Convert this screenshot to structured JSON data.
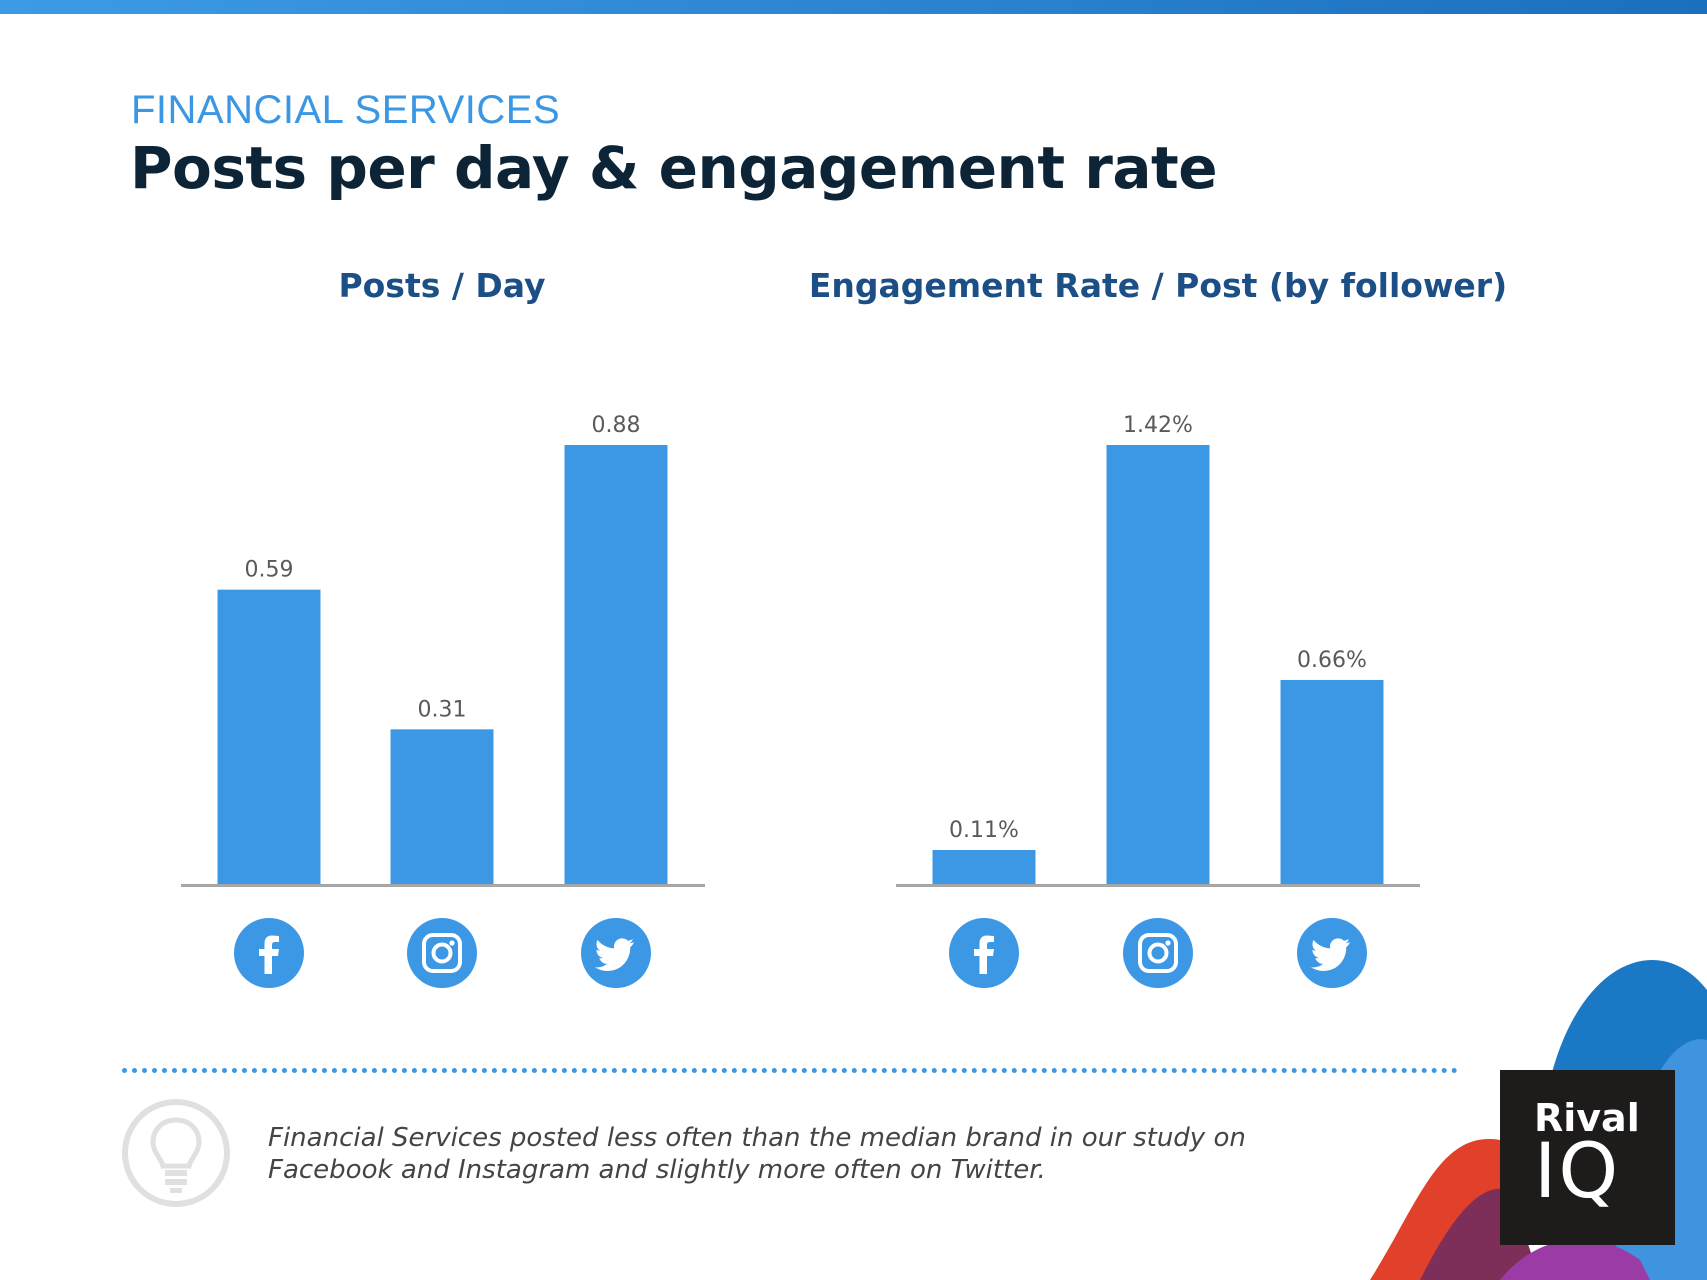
{
  "header": {
    "kicker": "FINANCIAL SERVICES",
    "title": "Posts per day & engagement rate"
  },
  "colors": {
    "bar": "#3c98e5",
    "title": "#0d2437",
    "chart_title": "#1c4f86",
    "kicker": "#3b97e3"
  },
  "chart_data": [
    {
      "type": "bar",
      "title": "Posts / Day",
      "categories": [
        "Facebook",
        "Instagram",
        "Twitter"
      ],
      "category_icons": [
        "facebook-icon",
        "instagram-icon",
        "twitter-icon"
      ],
      "values": [
        0.59,
        0.31,
        0.88
      ],
      "labels": [
        "0.59",
        "0.31",
        "0.88"
      ],
      "ylim": [
        0,
        0.88
      ],
      "xlabel": "",
      "ylabel": "",
      "grid": false
    },
    {
      "type": "bar",
      "title": "Engagement Rate / Post (by follower)",
      "categories": [
        "Facebook",
        "Instagram",
        "Twitter"
      ],
      "category_icons": [
        "facebook-icon",
        "instagram-icon",
        "twitter-icon"
      ],
      "values": [
        0.11,
        1.42,
        0.66
      ],
      "labels": [
        "0.11%",
        "1.42%",
        "0.66%"
      ],
      "ylim": [
        0,
        1.42
      ],
      "xlabel": "",
      "ylabel": "",
      "grid": false
    }
  ],
  "insight": {
    "icon": "lightbulb-icon",
    "text": "Financial Services posted less often than the median brand in our study on Facebook and Instagram and slightly more often on Twitter."
  },
  "logo": {
    "line1": "Rival",
    "line2": "IQ"
  }
}
